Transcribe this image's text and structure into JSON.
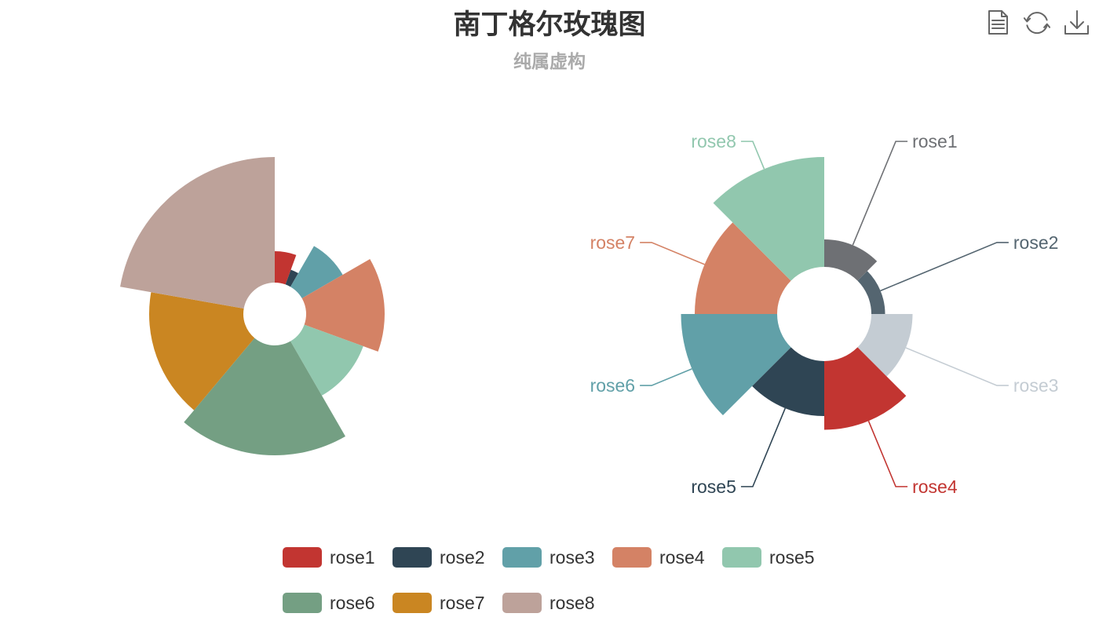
{
  "title": {
    "text": "南丁格尔玫瑰图",
    "subtext": "纯属虚构"
  },
  "toolbox": {
    "icon_color": "#666666",
    "items": [
      {
        "icon": "document-icon"
      },
      {
        "icon": "refresh-icon"
      },
      {
        "icon": "download-icon"
      }
    ]
  },
  "legend": {
    "position": "bottom"
  },
  "chart_data": [
    {
      "type": "pie",
      "rose_type": "radius",
      "labels_shown": false,
      "categories": [
        "rose1",
        "rose2",
        "rose3",
        "rose4",
        "rose5",
        "rose6",
        "rose7",
        "rose8"
      ],
      "values": [
        10,
        5,
        15,
        25,
        20,
        35,
        30,
        40
      ],
      "colors": [
        "#c23531",
        "#2f4554",
        "#61a0a8",
        "#d48265",
        "#91c7ae",
        "#749f83",
        "#ca8622",
        "#bda29a"
      ]
    },
    {
      "type": "pie",
      "rose_type": "area",
      "labels_shown": true,
      "categories": [
        "rose1",
        "rose2",
        "rose3",
        "rose4",
        "rose5",
        "rose6",
        "rose7",
        "rose8"
      ],
      "values": [
        10,
        5,
        15,
        25,
        20,
        35,
        30,
        40
      ],
      "colors": [
        "#6e7074",
        "#546570",
        "#c4ccd3",
        "#c23531",
        "#2f4554",
        "#61a0a8",
        "#d48265",
        "#91c7ae"
      ]
    }
  ]
}
